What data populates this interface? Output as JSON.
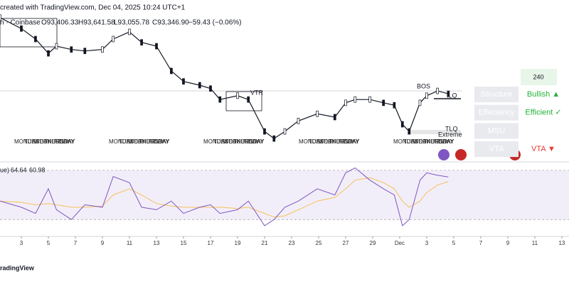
{
  "header": {
    "credit": "created with TradingView.com, Dec 04, 2025 10:24 UTC+1",
    "exchange": "n · Coinbase",
    "open": "O93,406.33",
    "high": "H93,641.58",
    "low": "L93,055.78",
    "close": "C93,346.90",
    "change": "−59.43 (−0.06%)"
  },
  "price": {
    "x": [
      1.42,
      3,
      4.05,
      5,
      5.6,
      6.7,
      7.7,
      9,
      9.8,
      11,
      11.9,
      13,
      14.1,
      15,
      16.2,
      17,
      17.7,
      19,
      19.8,
      21,
      21.7,
      22.5,
      23.5,
      24.9,
      26.2,
      27,
      27.7,
      28.8,
      29.8,
      30.6,
      31.2,
      31.7,
      32.5,
      33,
      33.8,
      34.6
    ],
    "values": [
      108300,
      106000,
      103800,
      100800,
      102300,
      101600,
      101300,
      101600,
      103800,
      105300,
      103100,
      102300,
      97100,
      94900,
      94100,
      93400,
      91100,
      91900,
      91100,
      84400,
      82900,
      84400,
      86600,
      88100,
      87400,
      90400,
      91100,
      91100,
      90400,
      89900,
      85900,
      84400,
      90400,
      91900,
      92900,
      92300
    ],
    "ylim": [
      78000,
      112000
    ],
    "color": "#131722"
  },
  "rsi": {
    "label": "ue)",
    "value_text": "64.64",
    "ma_text": "60.98",
    "values": [
      45,
      40,
      35,
      55,
      38,
      30,
      42,
      40,
      65,
      60,
      40,
      38,
      45,
      35,
      40,
      42,
      35,
      38,
      45,
      25,
      30,
      40,
      45,
      55,
      50,
      68,
      72,
      62,
      55,
      50,
      25,
      30,
      62,
      68,
      66,
      64.64
    ],
    "ma": [
      45,
      44,
      42,
      43,
      42,
      40,
      40,
      41,
      50,
      55,
      50,
      43,
      41,
      40,
      40,
      40,
      40,
      39,
      40,
      35,
      32,
      33,
      38,
      45,
      48,
      55,
      62,
      64,
      60,
      55,
      45,
      40,
      45,
      52,
      58,
      60.98
    ],
    "ylim": [
      18,
      74
    ],
    "bands": [
      30,
      70
    ],
    "color": "#7e57c2",
    "ma_color": "#f5c15a"
  },
  "xaxis": {
    "xlim": [
      1.42,
      43.53
    ],
    "xticks": [
      3,
      5,
      7,
      9,
      11,
      13,
      15,
      17,
      19,
      21,
      23,
      25,
      27,
      29,
      {
        "value": 31,
        "label": "Dec"
      },
      {
        "value": 33,
        "label": "3"
      },
      {
        "value": 35,
        "label": "5"
      },
      {
        "value": 37,
        "label": "7"
      },
      {
        "value": 39,
        "label": "9"
      },
      {
        "value": 41,
        "label": "11"
      },
      {
        "value": 43,
        "label": "13"
      }
    ]
  },
  "weekday_labels": [
    "MONDAY",
    "TUESDAY",
    "WEDNESDAY",
    "THURSDAY",
    "FRIDAY"
  ],
  "annotations": {
    "bos": "BOS",
    "ilq": "ILQ",
    "tlq": "TLQ",
    "extreme": "Extreme",
    "vtr": "VTR"
  },
  "panel": {
    "timeframe": "240",
    "rows": [
      {
        "label": "Structure",
        "status": "Bullish ▲"
      },
      {
        "label": "Effeciency",
        "status": "Efficient ✓"
      },
      {
        "label": "MSU"
      },
      {
        "label": "VTA",
        "status": "VTA ▼"
      }
    ]
  },
  "footer": {
    "brand": "radingView"
  }
}
